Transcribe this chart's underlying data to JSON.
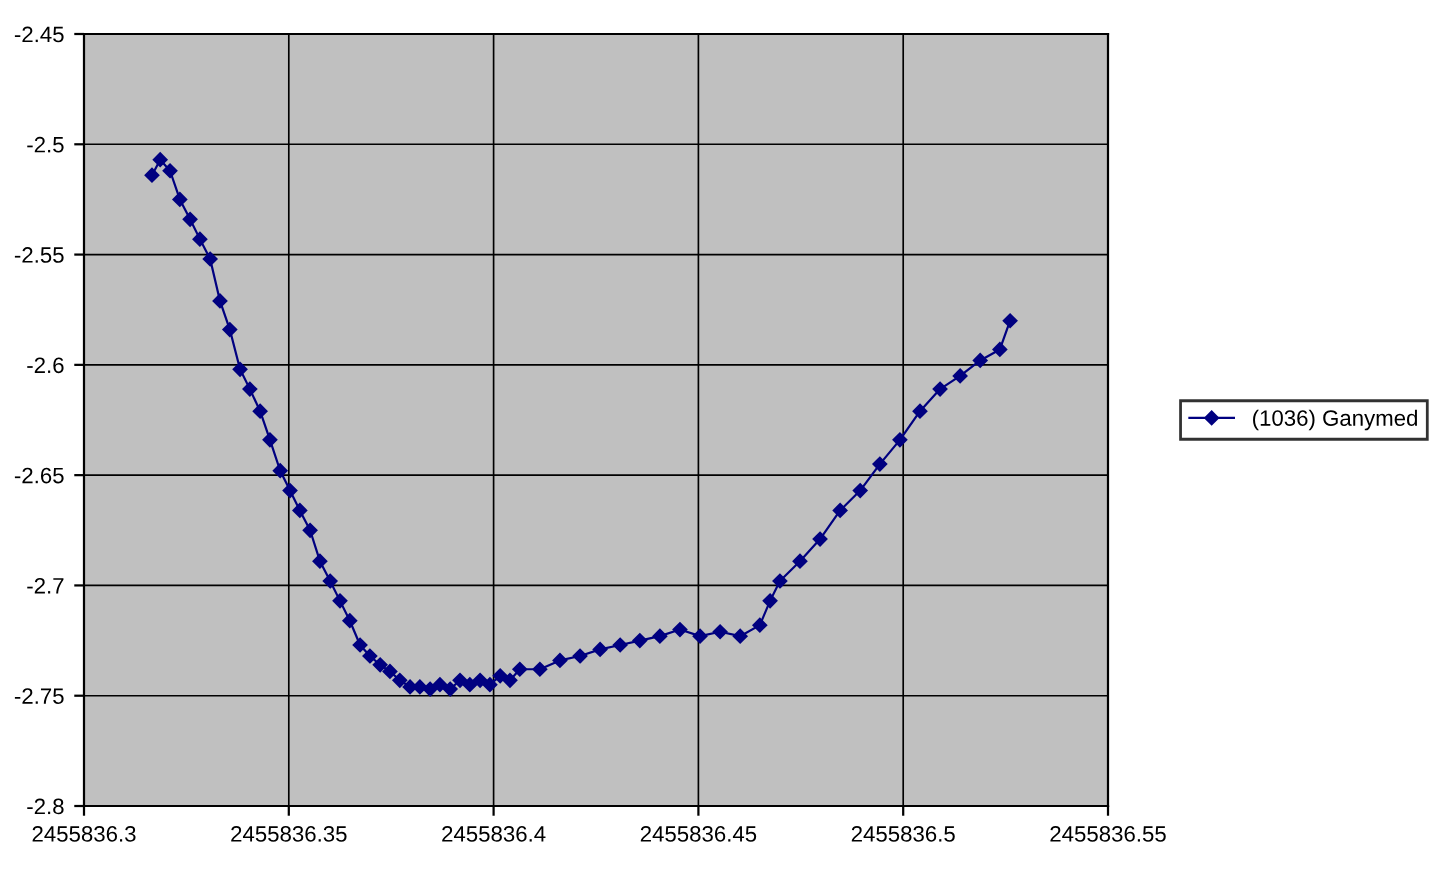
{
  "chart_data": {
    "type": "line",
    "marker": "diamond",
    "line_style": "solid",
    "grid": true,
    "legend": "right",
    "xlim": [
      2455836.3,
      2455836.55
    ],
    "xticks": [
      2455836.3,
      2455836.35,
      2455836.4,
      2455836.45,
      2455836.5,
      2455836.55
    ],
    "ylim": [
      -2.8,
      -2.45
    ],
    "yticks": [
      -2.8,
      -2.75,
      -2.7,
      -2.65,
      -2.6,
      -2.55,
      -2.5,
      -2.45
    ],
    "series": [
      {
        "name": "(1036) Ganymed",
        "color": "#000080",
        "x": [
          2455836.3166,
          2455836.3186,
          2455836.321,
          2455836.3234,
          2455836.3259,
          2455836.3283,
          2455836.3308,
          2455836.3332,
          2455836.3356,
          2455836.3381,
          2455836.3405,
          2455836.343,
          2455836.3454,
          2455836.3479,
          2455836.3503,
          2455836.3527,
          2455836.3552,
          2455836.3576,
          2455836.3601,
          2455836.3625,
          2455836.3649,
          2455836.3674,
          2455836.3698,
          2455836.3723,
          2455836.3747,
          2455836.3771,
          2455836.3796,
          2455836.382,
          2455836.3845,
          2455836.3869,
          2455836.3894,
          2455836.3918,
          2455836.3942,
          2455836.3967,
          2455836.3991,
          2455836.4016,
          2455836.404,
          2455836.4064,
          2455836.4113,
          2455836.4162,
          2455836.4211,
          2455836.426,
          2455836.4309,
          2455836.4357,
          2455836.4406,
          2455836.4455,
          2455836.4504,
          2455836.4553,
          2455836.4602,
          2455836.465,
          2455836.4675,
          2455836.4699,
          2455836.4748,
          2455836.4797,
          2455836.4846,
          2455836.4895,
          2455836.4943,
          2455836.4992,
          2455836.5041,
          2455836.509,
          2455836.5139,
          2455836.5188,
          2455836.5236,
          2455836.5261
        ],
        "values": [
          -2.514,
          -2.507,
          -2.512,
          -2.525,
          -2.534,
          -2.543,
          -2.552,
          -2.571,
          -2.584,
          -2.602,
          -2.611,
          -2.621,
          -2.634,
          -2.648,
          -2.657,
          -2.666,
          -2.675,
          -2.689,
          -2.698,
          -2.707,
          -2.716,
          -2.727,
          -2.732,
          -2.736,
          -2.739,
          -2.743,
          -2.746,
          -2.746,
          -2.747,
          -2.745,
          -2.747,
          -2.743,
          -2.745,
          -2.743,
          -2.745,
          -2.741,
          -2.743,
          -2.738,
          -2.738,
          -2.734,
          -2.732,
          -2.729,
          -2.727,
          -2.725,
          -2.723,
          -2.72,
          -2.723,
          -2.721,
          -2.723,
          -2.718,
          -2.707,
          -2.698,
          -2.689,
          -2.679,
          -2.666,
          -2.657,
          -2.645,
          -2.634,
          -2.621,
          -2.611,
          -2.605,
          -2.598,
          -2.593,
          -2.58
        ]
      }
    ]
  }
}
